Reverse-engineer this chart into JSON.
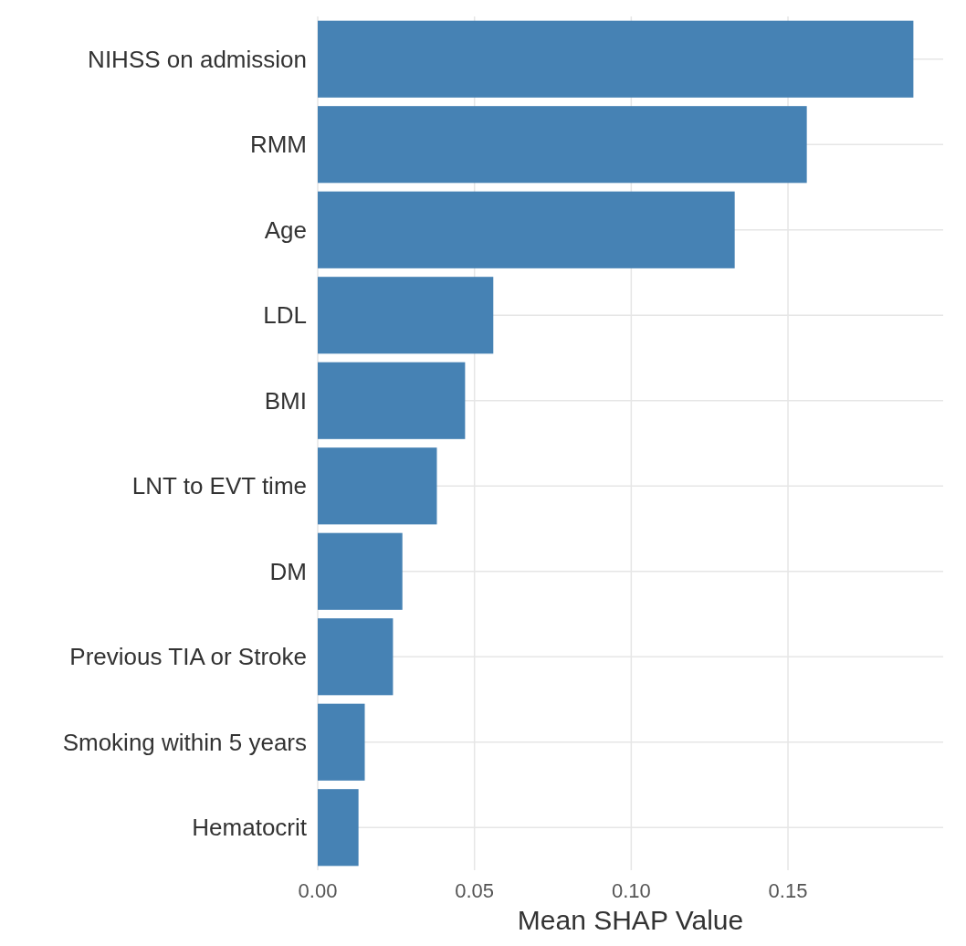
{
  "chart_data": {
    "type": "bar",
    "orientation": "horizontal",
    "xlabel": "Mean SHAP Value",
    "categories": [
      "NIHSS on admission",
      "RMM",
      "Age",
      "LDL",
      "BMI",
      "LNT to EVT time",
      "DM",
      "Previous TIA or Stroke",
      "Smoking within 5 years",
      "Hematocrit"
    ],
    "values": [
      0.19,
      0.156,
      0.133,
      0.056,
      0.047,
      0.038,
      0.027,
      0.024,
      0.015,
      0.013
    ],
    "color": "#4682b4",
    "xlim": [
      0,
      0.1995
    ],
    "xticks": [
      {
        "value": 0,
        "label": "0.00"
      },
      {
        "value": 0.05,
        "label": "0.05"
      },
      {
        "value": 0.1,
        "label": "0.10"
      },
      {
        "value": 0.15,
        "label": "0.15"
      }
    ],
    "grid": true
  }
}
